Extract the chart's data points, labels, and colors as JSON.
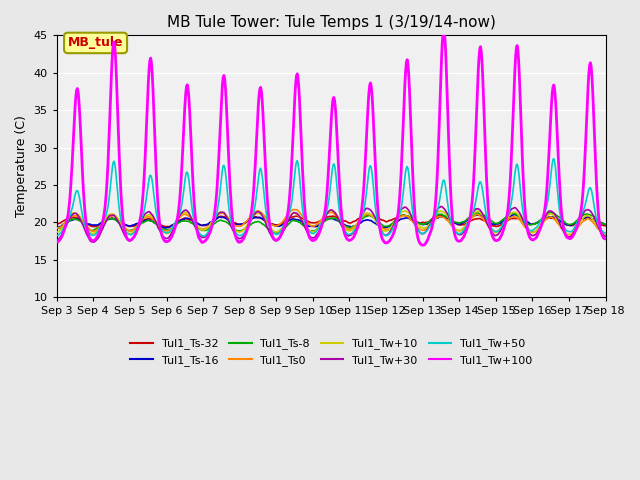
{
  "title": "MB Tule Tower: Tule Temps 1 (3/19/14-now)",
  "ylabel": "Temperature (C)",
  "ylim": [
    10,
    45
  ],
  "yticks": [
    10,
    15,
    20,
    25,
    30,
    35,
    40,
    45
  ],
  "x_labels": [
    "Sep 3",
    "Sep 4",
    "Sep 5",
    "Sep 6",
    "Sep 7",
    "Sep 8",
    "Sep 9",
    "Sep 10",
    "Sep 11",
    "Sep 12",
    "Sep 13",
    "Sep 14",
    "Sep 15",
    "Sep 16",
    "Sep 17",
    "Sep 18"
  ],
  "annotation_text": "MB_tule",
  "series": [
    {
      "label": "Tul1_Ts-32",
      "color": "#cc0000",
      "lw": 1.2
    },
    {
      "label": "Tul1_Ts-16",
      "color": "#0000cc",
      "lw": 1.2
    },
    {
      "label": "Tul1_Ts-8",
      "color": "#00aa00",
      "lw": 1.2
    },
    {
      "label": "Tul1_Ts0",
      "color": "#ff8800",
      "lw": 1.2
    },
    {
      "label": "Tul1_Tw+10",
      "color": "#cccc00",
      "lw": 1.2
    },
    {
      "label": "Tul1_Tw+30",
      "color": "#aa00aa",
      "lw": 1.2
    },
    {
      "label": "Tul1_Tw+50",
      "color": "#00cccc",
      "lw": 1.2
    },
    {
      "label": "Tul1_Tw+100",
      "color": "#ff00ff",
      "lw": 2.0
    }
  ],
  "bg_color": "#e8e8e8",
  "plot_bg_color": "#f0f0f0",
  "grid_color": "#ffffff",
  "num_days": 15
}
